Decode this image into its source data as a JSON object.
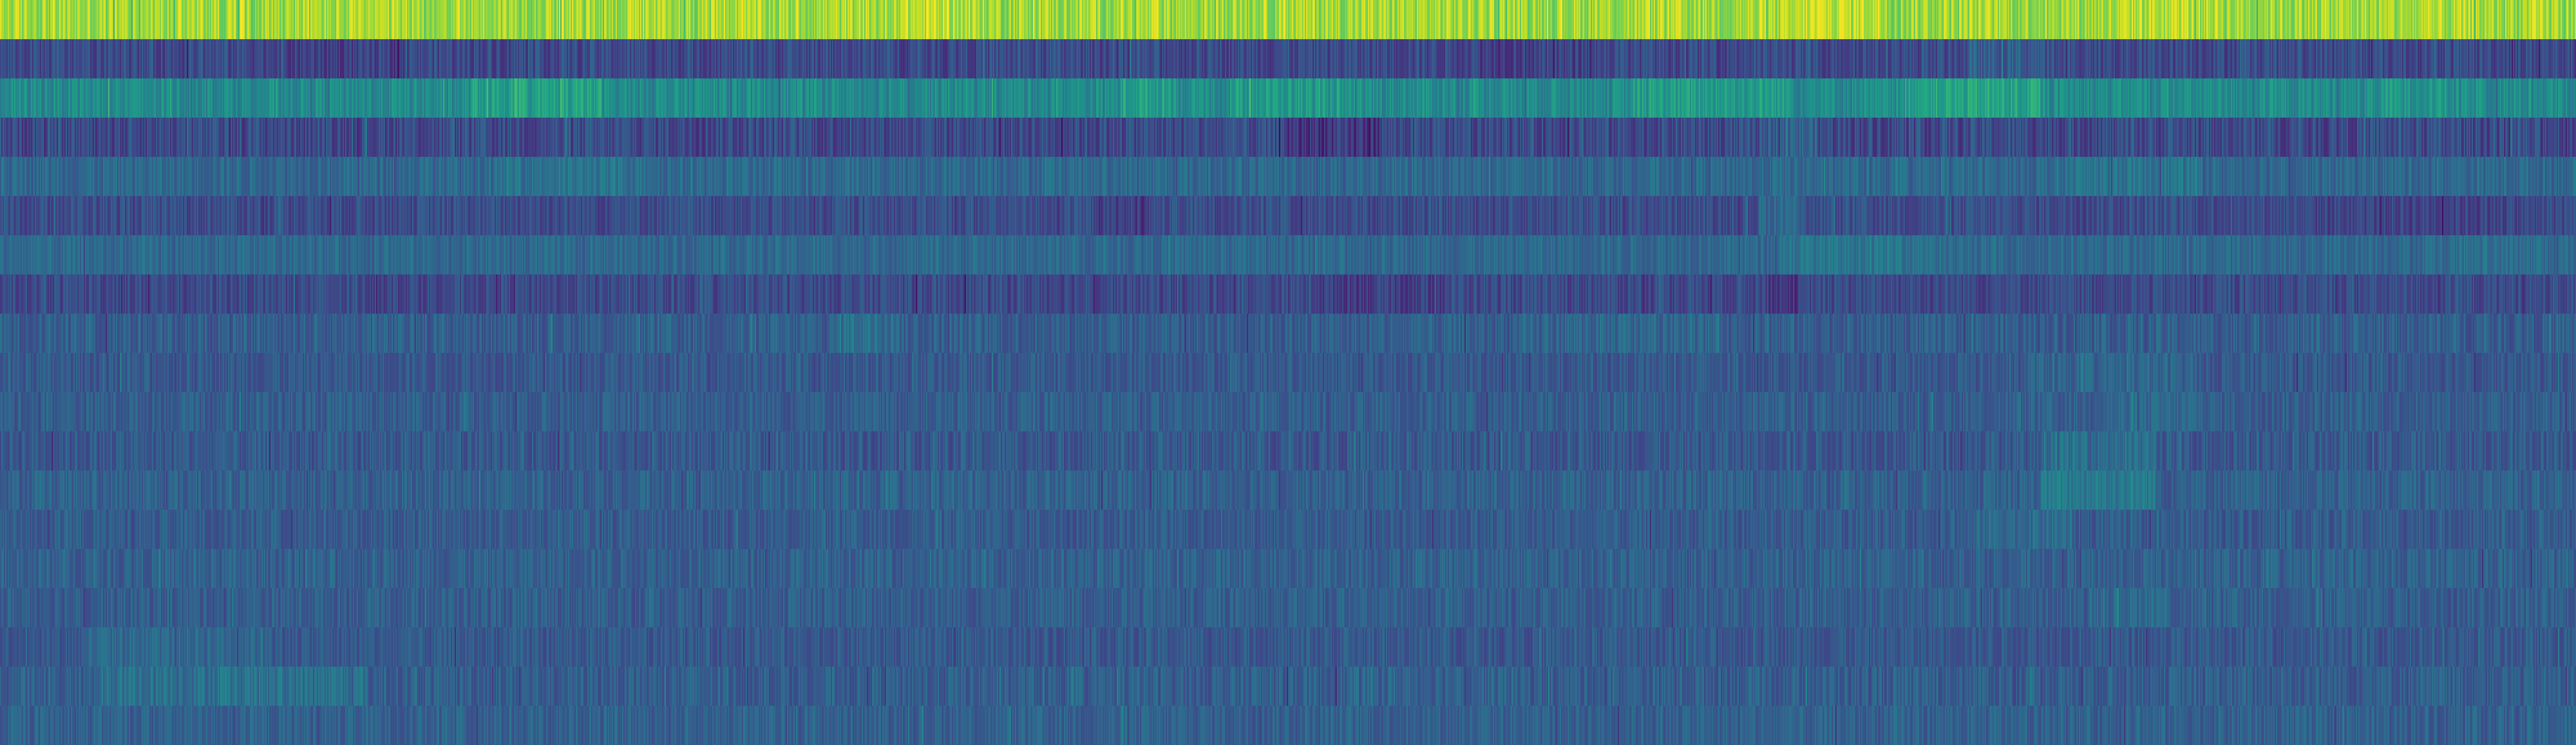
{
  "chart_data": {
    "type": "heatmap",
    "title": "",
    "xlabel": "",
    "ylabel": "",
    "colormap": "viridis",
    "value_range": [
      0,
      1
    ],
    "n_rows": 19,
    "n_columns": 2000,
    "rows": [
      {
        "base": 0.86,
        "vary": 0.12,
        "hi": [
          [
            1700,
            1840,
            0.04
          ],
          [
            3440,
            3600,
            0.05
          ],
          [
            4060,
            4250,
            0.03
          ]
        ]
      },
      {
        "base": 0.23,
        "vary": 0.1,
        "hi": [
          [
            540,
            780,
            -0.04
          ],
          [
            2820,
            3020,
            -0.03
          ],
          [
            3760,
            3900,
            0.06
          ]
        ]
      },
      {
        "base": 0.48,
        "vary": 0.1,
        "hi": [
          [
            900,
            1150,
            0.08
          ],
          [
            2140,
            2250,
            0.08
          ],
          [
            2350,
            2560,
            0.06
          ],
          [
            3120,
            3430,
            0.07
          ],
          [
            3640,
            3900,
            0.1
          ],
          [
            4550,
            4680,
            0.05
          ]
        ]
      },
      {
        "base": 0.23,
        "vary": 0.11,
        "hi": [
          [
            2460,
            2640,
            -0.07
          ],
          [
            3380,
            3470,
            0.08
          ]
        ]
      },
      {
        "base": 0.34,
        "vary": 0.08,
        "hi": [
          [
            960,
            1250,
            0.04
          ],
          [
            3950,
            4210,
            0.04
          ]
        ]
      },
      {
        "base": 0.24,
        "vary": 0.09,
        "hi": [
          [
            2100,
            2200,
            -0.05
          ],
          [
            3360,
            3450,
            0.1
          ],
          [
            4400,
            4850,
            -0.03
          ]
        ]
      },
      {
        "base": 0.34,
        "vary": 0.07,
        "hi": [
          [
            3400,
            3700,
            0.05
          ],
          [
            4700,
            4860,
            0.02
          ]
        ]
      },
      {
        "base": 0.23,
        "vary": 0.09,
        "hi": [
          [
            2520,
            2760,
            -0.04
          ],
          [
            3380,
            3450,
            -0.06
          ]
        ]
      },
      {
        "base": 0.3,
        "vary": 0.09,
        "hi": [
          [
            1600,
            1720,
            0.08
          ],
          [
            2950,
            3300,
            0.03
          ]
        ]
      },
      {
        "base": 0.28,
        "vary": 0.08,
        "hi": [
          [
            3870,
            4200,
            0.04
          ]
        ]
      },
      {
        "base": 0.3,
        "vary": 0.08,
        "hi": [
          [
            4000,
            4220,
            0.03
          ]
        ]
      },
      {
        "base": 0.28,
        "vary": 0.09,
        "hi": [
          [
            3900,
            4120,
            0.08
          ]
        ]
      },
      {
        "base": 0.31,
        "vary": 0.08,
        "hi": [
          [
            3900,
            4120,
            0.1
          ]
        ]
      },
      {
        "base": 0.29,
        "vary": 0.08,
        "hi": [
          [
            3780,
            3960,
            0.06
          ]
        ]
      },
      {
        "base": 0.31,
        "vary": 0.08,
        "hi": []
      },
      {
        "base": 0.3,
        "vary": 0.08,
        "hi": [
          [
            3990,
            4150,
            0.05
          ]
        ]
      },
      {
        "base": 0.28,
        "vary": 0.08,
        "hi": [
          [
            160,
            520,
            0.06
          ]
        ]
      },
      {
        "base": 0.3,
        "vary": 0.09,
        "hi": [
          [
            180,
            700,
            0.07
          ],
          [
            2580,
            2900,
            0.02
          ]
        ]
      },
      {
        "base": 0.31,
        "vary": 0.08,
        "hi": []
      }
    ]
  }
}
